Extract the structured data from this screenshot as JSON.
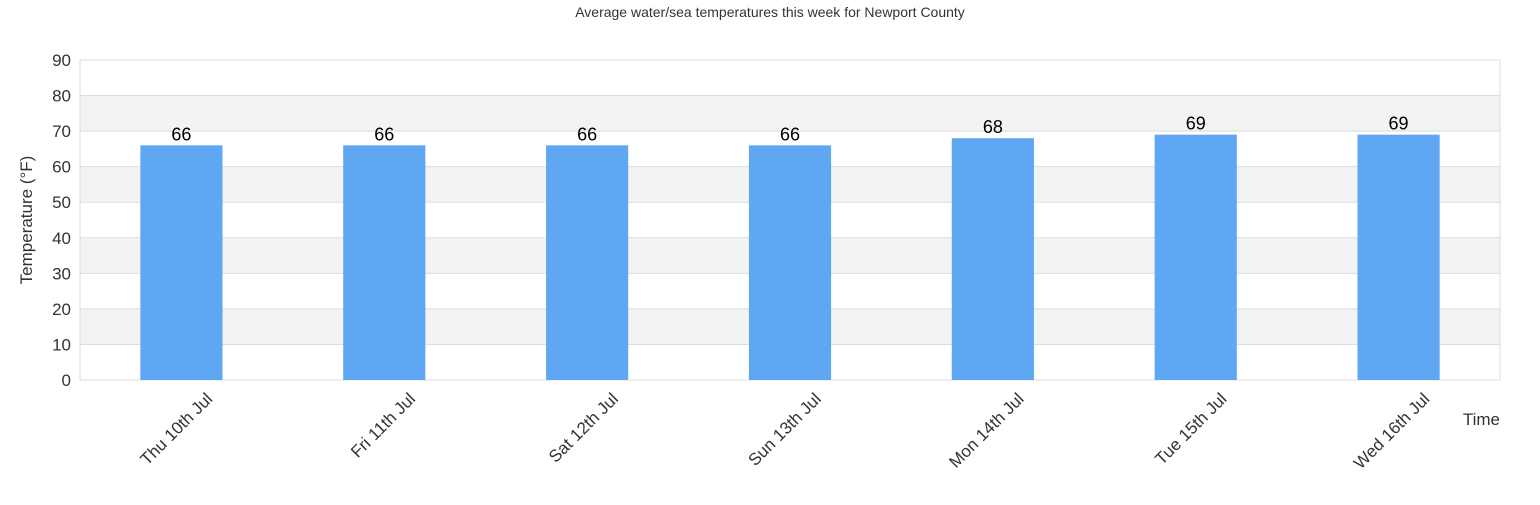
{
  "chart_data": {
    "type": "bar",
    "title": "Average water/sea temperatures this week for Newport County",
    "xlabel": "Time",
    "ylabel": "Temperature (°F)",
    "categories": [
      "Thu 10th Jul",
      "Fri 11th Jul",
      "Sat 12th Jul",
      "Sun 13th Jul",
      "Mon 14th Jul",
      "Tue 15th Jul",
      "Wed 16th Jul"
    ],
    "values": [
      66,
      66,
      66,
      66,
      68,
      69,
      69
    ],
    "data_labels": [
      "66",
      "66",
      "66",
      "66",
      "68",
      "69",
      "69"
    ],
    "ylim": [
      0,
      90
    ],
    "yticks": [
      0,
      10,
      20,
      30,
      40,
      50,
      60,
      70,
      80,
      90
    ],
    "grid": true,
    "alternating_bands": true,
    "colors": {
      "bar": "#60a7f3",
      "band": "#f3f3f3",
      "gridline": "#dddddd",
      "text": "#333333",
      "label": "#000000"
    }
  }
}
